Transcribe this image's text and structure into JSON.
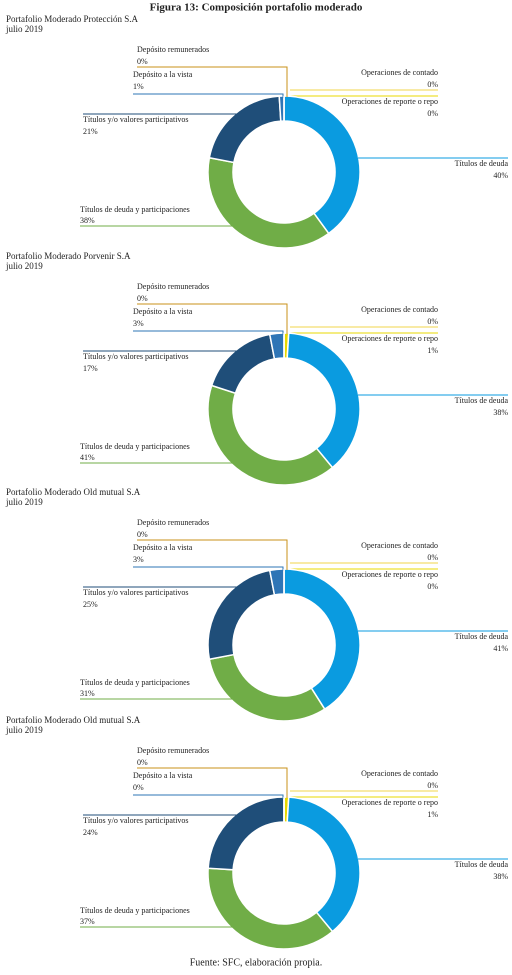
{
  "figure_title": "Figura 13: Composición portafolio moderado",
  "source": "Fuente: SFC, elaboración propia.",
  "chart_data": [
    {
      "type": "donut",
      "title": "Portafolio Moderado Protección S.A",
      "subtitle": "julio 2019",
      "categories": [
        "Operaciones de contado",
        "Operaciones de reporte o repo",
        "Títulos de deuda",
        "Títulos de deuda y participaciones",
        "Títulos y/o valores participativos",
        "Depósito a la vista",
        "Depósito remunerados"
      ],
      "values": [
        0,
        0,
        40,
        38,
        21,
        1,
        0
      ],
      "value_labels": [
        "0%",
        "0%",
        "40%",
        "38%",
        "21%",
        "1%",
        "0%"
      ],
      "colors": [
        "#f2d64b",
        "#e8d800",
        "#0a9be0",
        "#70ad47",
        "#1f4e79",
        "#2e75b6",
        "#c8901a"
      ]
    },
    {
      "type": "donut",
      "title": "Portafolio Moderado Porvenir S.A",
      "subtitle": "julio 2019",
      "categories": [
        "Operaciones de contado",
        "Operaciones de reporte o repo",
        "Títulos de deuda",
        "Títulos de deuda y participaciones",
        "Títulos y/o valores participativos",
        "Depósito a la vista",
        "Depósito remunerados"
      ],
      "values": [
        0,
        1,
        38,
        41,
        17,
        3,
        0
      ],
      "value_labels": [
        "0%",
        "1%",
        "38%",
        "41%",
        "17%",
        "3%",
        "0%"
      ],
      "colors": [
        "#f2d64b",
        "#e8d800",
        "#0a9be0",
        "#70ad47",
        "#1f4e79",
        "#2e75b6",
        "#c8901a"
      ]
    },
    {
      "type": "donut",
      "title": "Portafolio Moderado Old mutual S.A",
      "subtitle": "julio 2019",
      "categories": [
        "Operaciones de contado",
        "Operaciones de reporte o repo",
        "Títulos de deuda",
        "Títulos de deuda y participaciones",
        "Títulos y/o valores participativos",
        "Depósito a la vista",
        "Depósito remunerados"
      ],
      "values": [
        0,
        0,
        41,
        31,
        25,
        3,
        0
      ],
      "value_labels": [
        "0%",
        "0%",
        "41%",
        "31%",
        "25%",
        "3%",
        "0%"
      ],
      "colors": [
        "#f2d64b",
        "#e8d800",
        "#0a9be0",
        "#70ad47",
        "#1f4e79",
        "#2e75b6",
        "#c8901a"
      ]
    },
    {
      "type": "donut",
      "title": "Portafolio Moderado Old mutual S.A",
      "subtitle": "julio 2019",
      "categories": [
        "Operaciones de contado",
        "Operaciones de reporte o repo",
        "Títulos de deuda",
        "Títulos de deuda y participaciones",
        "Títulos y/o valores participativos",
        "Depósito a la vista",
        "Depósito remunerados"
      ],
      "values": [
        0,
        1,
        38,
        37,
        24,
        0,
        0
      ],
      "value_labels": [
        "0%",
        "1%",
        "38%",
        "37%",
        "24%",
        "0%",
        "0%"
      ],
      "colors": [
        "#f2d64b",
        "#e8d800",
        "#0a9be0",
        "#70ad47",
        "#1f4e79",
        "#2e75b6",
        "#c8901a"
      ]
    }
  ]
}
